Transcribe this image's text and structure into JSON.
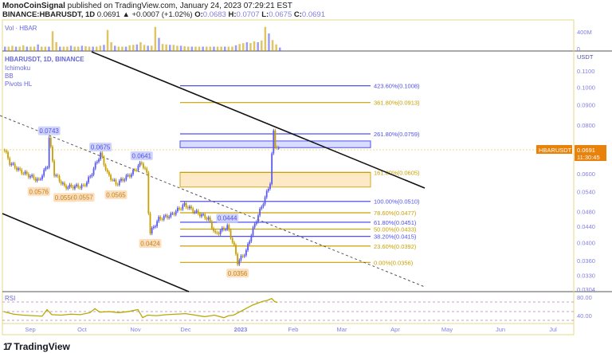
{
  "header": {
    "publisher": "MonoCoinSignal",
    "published_text": "published on TradingView.com, January 24, 2023 07:29:21 EST",
    "symbol": "BINANCE:HBARUSDT, 1D",
    "last": "0.0691",
    "change": "▲ +0.0007 (+1.02%)",
    "o_label": "O:",
    "o": "0.0683",
    "h_label": "H:",
    "h": "0.0707",
    "l_label": "L:",
    "l": "0.0675",
    "c_label": "C:",
    "c": "0.0691"
  },
  "legend": {
    "volume": "Vol · HBAR",
    "main": "HBARUSDT, 1D, BINANCE",
    "indicators": [
      "Ichimoku",
      "BB",
      "Pivots HL"
    ],
    "rsi": "RSI"
  },
  "price_badge": {
    "symbol": "HBARUSDT",
    "price": "0.0691",
    "countdown": "11:30:45"
  },
  "colors": {
    "up": "#5b5bf0",
    "down": "#c8a000",
    "accent": "#e8820a",
    "fib_blue": "#5050ee",
    "fib_gold": "#c8a000",
    "axis_text": "#8080e0"
  },
  "branding": "TradingView",
  "chart_data": {
    "type": "candlestick",
    "price_scale": "log",
    "y_ticks": [
      "0.1100",
      "0.1000",
      "0.0900",
      "0.0800",
      "0.0600",
      "0.0540",
      "0.0480",
      "0.0440",
      "0.0400",
      "0.0360",
      "0.0330",
      "0.0304"
    ],
    "y_unit": "USDT",
    "volume_ticks": [
      "400M",
      "0"
    ],
    "rsi_ticks": [
      "80.00",
      "40.00"
    ],
    "x_ticks": [
      "Sep",
      "Oct",
      "Nov",
      "Dec",
      "2023",
      "Feb",
      "Mar",
      "Apr",
      "May",
      "Jun",
      "Jul"
    ],
    "price_path": [
      [
        "2022-08-17",
        0.069
      ],
      [
        "2022-08-20",
        0.064
      ],
      [
        "2022-08-26",
        0.061
      ],
      [
        "2022-09-06",
        0.0576
      ],
      [
        "2022-09-11",
        0.063
      ],
      [
        "2022-09-12",
        0.0743
      ],
      [
        "2022-09-15",
        0.06
      ],
      [
        "2022-09-21",
        0.0556
      ],
      [
        "2022-10-02",
        0.0557
      ],
      [
        "2022-10-06",
        0.059
      ],
      [
        "2022-10-12",
        0.0675
      ],
      [
        "2022-10-16",
        0.06
      ],
      [
        "2022-10-21",
        0.0565
      ],
      [
        "2022-10-30",
        0.06
      ],
      [
        "2022-11-05",
        0.0641
      ],
      [
        "2022-11-08",
        0.06
      ],
      [
        "2022-11-09",
        0.048
      ],
      [
        "2022-11-10",
        0.0424
      ],
      [
        "2022-11-15",
        0.046
      ],
      [
        "2022-11-22",
        0.047
      ],
      [
        "2022-11-30",
        0.05
      ],
      [
        "2022-12-06",
        0.048
      ],
      [
        "2022-12-14",
        0.046
      ],
      [
        "2022-12-18",
        0.042
      ],
      [
        "2022-12-25",
        0.044
      ],
      [
        "2022-12-29",
        0.039
      ],
      [
        "2022-12-31",
        0.0356
      ],
      [
        "2023-01-05",
        0.038
      ],
      [
        "2023-01-08",
        0.042
      ],
      [
        "2023-01-12",
        0.047
      ],
      [
        "2023-01-16",
        0.052
      ],
      [
        "2023-01-19",
        0.057
      ],
      [
        "2023-01-21",
        0.077
      ],
      [
        "2023-01-22",
        0.071
      ],
      [
        "2023-01-24",
        0.0691
      ]
    ],
    "pivots": [
      {
        "label": "0.0743",
        "price": 0.0743,
        "date": "2022-09-12",
        "type": "high"
      },
      {
        "label": "0.0675",
        "price": 0.0675,
        "date": "2022-10-12",
        "type": "high"
      },
      {
        "label": "0.0641",
        "price": 0.0641,
        "date": "2022-11-05",
        "type": "high"
      },
      {
        "label": "0.0444",
        "price": 0.0444,
        "date": "2022-12-25",
        "type": "high"
      },
      {
        "label": "0.0576",
        "price": 0.0576,
        "date": "2022-09-06",
        "type": "low"
      },
      {
        "label": "0.0556",
        "price": 0.0556,
        "date": "2022-09-21",
        "type": "low"
      },
      {
        "label": "0.0557",
        "price": 0.0557,
        "date": "2022-10-02",
        "type": "low"
      },
      {
        "label": "0.0565",
        "price": 0.0565,
        "date": "2022-10-21",
        "type": "low"
      },
      {
        "label": "0.0424",
        "price": 0.0424,
        "date": "2022-11-10",
        "type": "low"
      },
      {
        "label": "0.0356",
        "price": 0.0356,
        "date": "2022-12-31",
        "type": "low"
      }
    ],
    "fib_levels": [
      {
        "label": "423.60%(0.1008)",
        "price": 0.1008,
        "color": "blue"
      },
      {
        "label": "361.80%(0.0913)",
        "price": 0.0913,
        "color": "gold"
      },
      {
        "label": "261.80%(0.0759)",
        "price": 0.0759,
        "color": "blue"
      },
      {
        "label": "161.80%(0.0605)",
        "price": 0.0605,
        "color": "gold"
      },
      {
        "label": "100.00%(0.0510)",
        "price": 0.051,
        "color": "blue"
      },
      {
        "label": "78.60%(0.0477)",
        "price": 0.0477,
        "color": "gold"
      },
      {
        "label": "61.80%(0.0451)",
        "price": 0.0451,
        "color": "blue"
      },
      {
        "label": "50.00%(0.0433)",
        "price": 0.0433,
        "color": "gold"
      },
      {
        "label": "38.20%(0.0415)",
        "price": 0.0415,
        "color": "blue"
      },
      {
        "label": "23.60%(0.0392)",
        "price": 0.0392,
        "color": "gold"
      },
      {
        "label": "0.00%(0.0356)",
        "price": 0.0356,
        "color": "gold"
      }
    ],
    "volume_relative": [
      1,
      1,
      1.2,
      1,
      1,
      1.3,
      1,
      1,
      1,
      1.5,
      1,
      1,
      1,
      4.5,
      2,
      1,
      1,
      1,
      1.2,
      1,
      1,
      1.2,
      1.1,
      1,
      1,
      1,
      1.2,
      1.4,
      4.8,
      2,
      1.2,
      1,
      1,
      1,
      1.3,
      1.4,
      1.5,
      2,
      1.4,
      1.2,
      1.2,
      5.5,
      3,
      1.6,
      1.5,
      1.4,
      1.4,
      1.2,
      1.2,
      1.1,
      1,
      1,
      1,
      1,
      1,
      1,
      1,
      1,
      1,
      1,
      1,
      1,
      1,
      1.3,
      1.6,
      1.8,
      2,
      1.8,
      2.2,
      2,
      2.4,
      5.5,
      4,
      2.5,
      1.5,
      0.8
    ],
    "rsi_path": [
      [
        0,
        52
      ],
      [
        10,
        47
      ],
      [
        20,
        45
      ],
      [
        30,
        44
      ],
      [
        40,
        43
      ],
      [
        45,
        56
      ],
      [
        50,
        46
      ],
      [
        60,
        45
      ],
      [
        70,
        47
      ],
      [
        80,
        46
      ],
      [
        90,
        50
      ],
      [
        95,
        58
      ],
      [
        100,
        51
      ],
      [
        110,
        52
      ],
      [
        120,
        50
      ],
      [
        130,
        52
      ],
      [
        140,
        56
      ],
      [
        145,
        40
      ],
      [
        150,
        45
      ],
      [
        160,
        44
      ],
      [
        170,
        46
      ],
      [
        180,
        47
      ],
      [
        190,
        48
      ],
      [
        200,
        45
      ],
      [
        210,
        42
      ],
      [
        220,
        45
      ],
      [
        230,
        40
      ],
      [
        235,
        44
      ],
      [
        240,
        45
      ],
      [
        250,
        55
      ],
      [
        260,
        65
      ],
      [
        270,
        72
      ],
      [
        275,
        74
      ],
      [
        280,
        78
      ],
      [
        283,
        72
      ],
      [
        286,
        70
      ]
    ]
  }
}
